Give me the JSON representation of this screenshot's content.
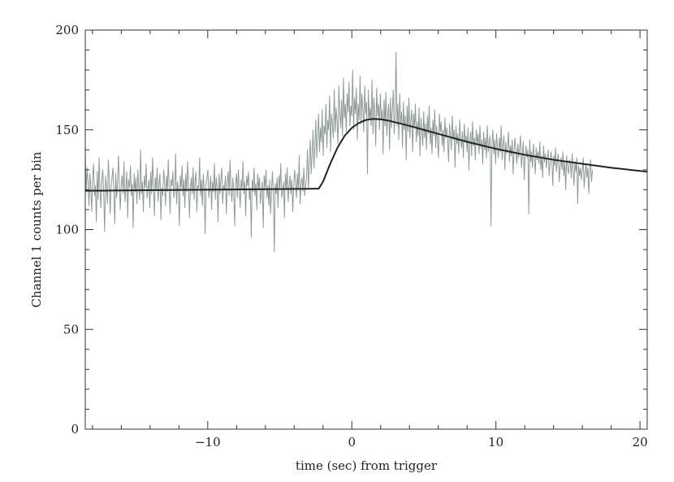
{
  "chart_data": {
    "type": "line",
    "title": "",
    "xlabel": "time (sec) from trigger",
    "ylabel": "Channel 1 counts per bin",
    "xlim": [
      -18.5,
      20.5
    ],
    "ylim": [
      0,
      200
    ],
    "x_ticks": [
      -10,
      0,
      10,
      20
    ],
    "x_tick_labels": [
      "−10",
      "0",
      "10",
      "20"
    ],
    "y_ticks": [
      0,
      50,
      100,
      150,
      200
    ],
    "y_tick_labels": [
      "0",
      "50",
      "100",
      "150",
      "200"
    ],
    "grid": false,
    "legend": "none",
    "colors": {
      "data": "#8e9a9a",
      "fit": "#222222",
      "axis": "#333333"
    },
    "series": [
      {
        "role": "observed counts (noisy light histogram)",
        "x_start": -18.5,
        "x_step": 0.064,
        "baseline": 120,
        "values": [
          138,
          119,
          131,
          124,
          112,
          128,
          121,
          109,
          126,
          133,
          117,
          122,
          104,
          129,
          115,
          136,
          120,
          111,
          125,
          130,
          118,
          99,
          127,
          121,
          113,
          135,
          124,
          108,
          122,
          126,
          131,
          119,
          103,
          128,
          116,
          124,
          137,
          121,
          110,
          123,
          127,
          118,
          134,
          114,
          120,
          129,
          106,
          125,
          121,
          132,
          117,
          123,
          101,
          128,
          119,
          126,
          113,
          130,
          122,
          115,
          140,
          118,
          124,
          109,
          127,
          121,
          133,
          116,
          120,
          125,
          111,
          129,
          118,
          136,
          122,
          107,
          126,
          120,
          131,
          114,
          123,
          128,
          105,
          121,
          117,
          130,
          124,
          112,
          127,
          119,
          135,
          121,
          108,
          125,
          122,
          129,
          116,
          119,
          138,
          113,
          124,
          120,
          102,
          127,
          121,
          132,
          117,
          125,
          111,
          128,
          119,
          134,
          123,
          106,
          120,
          126,
          118,
          131,
          115,
          124,
          129,
          109,
          122,
          121,
          136,
          117,
          125,
          112,
          128,
          120,
          98,
          123,
          126,
          130,
          116,
          121,
          127,
          110,
          124,
          119,
          133,
          115,
          126,
          121,
          104,
          128,
          118,
          125,
          131,
          113,
          122,
          120,
          127,
          108,
          124,
          129,
          117,
          135,
          121,
          114,
          126,
          119,
          102,
          123,
          128,
          116,
          130,
          121,
          111,
          125,
          120,
          134,
          118,
          124,
          107,
          127,
          122,
          129,
          115,
          121,
          96,
          125,
          119,
          131,
          117,
          123,
          110,
          128,
          120,
          126,
          113,
          119,
          124,
          101,
          127,
          121,
          130,
          116,
          122,
          112,
          125,
          108,
          120,
          129,
          117,
          89,
          123,
          118,
          126,
          111,
          127,
          121,
          133,
          116,
          119,
          124,
          106,
          128,
          120,
          131,
          114,
          122,
          127,
          118,
          125,
          109,
          121,
          130,
          124,
          116,
          128,
          120,
          137,
          113,
          123,
          126,
          119,
          131,
          117,
          122,
          127,
          140,
          121,
          133,
          145,
          128,
          138,
          150,
          131,
          142,
          155,
          136,
          147,
          158,
          139,
          151,
          144,
          160,
          137,
          152,
          148,
          163,
          141,
          155,
          150,
          167,
          139,
          158,
          153,
          146,
          170,
          149,
          161,
          155,
          143,
          172,
          158,
          151,
          165,
          147,
          176,
          156,
          163,
          149,
          168,
          159,
          174,
          152,
          162,
          157,
          180,
          150,
          166,
          158,
          171,
          145,
          163,
          155,
          177,
          153,
          168,
          160,
          149,
          172,
          158,
          164,
          128,
          170,
          155,
          161,
          152,
          175,
          148,
          166,
          159,
          142,
          171,
          157,
          163,
          150,
          168,
          155,
          160,
          138,
          165,
          152,
          169,
          147,
          158,
          163,
          140,
          166,
          151,
          160,
          170,
          148,
          157,
          189,
          152,
          163,
          145,
          168,
          153,
          159,
          141,
          164,
          150,
          157,
          135,
          162,
          149,
          166,
          146,
          155,
          160,
          139,
          158,
          151,
          163,
          144,
          154,
          147,
          161,
          137,
          156,
          150,
          142,
          159,
          146,
          153,
          140,
          157,
          148,
          162,
          143,
          151,
          138,
          155,
          147,
          160,
          141,
          152,
          145,
          136,
          158,
          149,
          154,
          142,
          150,
          139,
          156,
          146,
          151,
          144,
          134,
          153,
          147,
          140,
          157,
          145,
          150,
          131,
          152,
          143,
          148,
          138,
          155,
          146,
          141,
          149,
          136,
          153,
          144,
          147,
          139,
          151,
          130,
          145,
          149,
          137,
          154,
          142,
          146,
          135,
          150,
          143,
          148,
          138,
          152,
          141,
          145,
          133,
          149,
          140,
          146,
          136,
          152,
          139,
          144,
          147,
          102,
          142,
          150,
          138,
          145,
          133,
          148,
          141,
          136,
          146,
          139,
          152,
          135,
          143,
          147,
          130,
          144,
          138,
          141,
          149,
          134,
          142,
          137,
          145,
          128,
          140,
          146,
          139,
          133,
          143,
          136,
          141,
          147,
          131,
          138,
          144,
          125,
          137,
          142,
          136,
          140,
          108,
          145,
          134,
          139,
          131,
          143,
          136,
          128,
          141,
          135,
          139,
          133,
          144,
          130,
          137,
          126,
          142,
          134,
          138,
          131,
          136,
          140,
          127,
          133,
          139,
          135,
          122,
          137,
          132,
          141,
          129,
          135,
          138,
          124,
          132,
          136,
          130,
          139,
          127,
          134,
          120,
          137,
          131,
          128,
          135,
          133,
          126,
          138,
          130,
          122,
          134,
          129,
          136,
          113,
          132,
          127,
          131,
          125,
          130,
          136,
          121,
          128,
          133,
          126,
          131,
          118,
          129,
          135,
          124,
          130
        ]
      },
      {
        "name": "",
        "role": "model fit (dark smooth curve)",
        "x": [
          -18.5,
          -15,
          -10,
          -5,
          -2.5,
          -2.3,
          -2,
          -1.5,
          -1,
          -0.5,
          0,
          0.5,
          1,
          1.5,
          2,
          2.5,
          3,
          4,
          5,
          6,
          7,
          8,
          10,
          12,
          14,
          16,
          18,
          20.5
        ],
        "values": [
          119.5,
          119.7,
          120,
          120.3,
          120.5,
          120.5,
          124,
          133,
          141,
          147,
          151,
          153.5,
          155,
          155.5,
          155.3,
          154.7,
          153.8,
          152,
          150,
          148,
          146,
          144,
          140.5,
          137.5,
          135,
          133,
          131,
          129
        ]
      }
    ]
  }
}
